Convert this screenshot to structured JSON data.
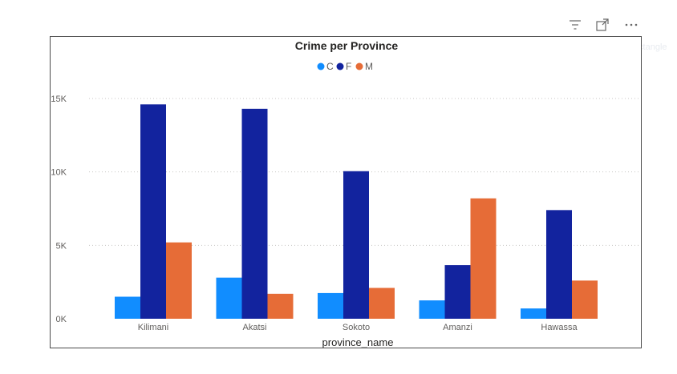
{
  "visual_header": {
    "icons": [
      "filter-icon",
      "focus-mode-icon",
      "more-options-icon"
    ]
  },
  "background_hint": {
    "label": "Rectangle"
  },
  "chart_data": {
    "type": "bar",
    "title": "Crime per Province",
    "xlabel": "province_name",
    "ylabel": "",
    "categories": [
      "Kilimani",
      "Akatsi",
      "Sokoto",
      "Amanzi",
      "Hawassa"
    ],
    "series": [
      {
        "name": "C",
        "color": "#118dff",
        "values": [
          1500,
          2800,
          1750,
          1250,
          700
        ]
      },
      {
        "name": "F",
        "color": "#12239e",
        "values": [
          14600,
          14300,
          10050,
          3650,
          7400
        ]
      },
      {
        "name": "M",
        "color": "#e66c37",
        "values": [
          5200,
          1700,
          2100,
          8200,
          2600
        ]
      }
    ],
    "ylim": [
      0,
      15000
    ],
    "yticks": [
      {
        "value": 0,
        "label": "0K"
      },
      {
        "value": 5000,
        "label": "5K"
      },
      {
        "value": 10000,
        "label": "10K"
      },
      {
        "value": 15000,
        "label": "15K"
      }
    ],
    "grid": true,
    "legend_position": "top-center"
  }
}
